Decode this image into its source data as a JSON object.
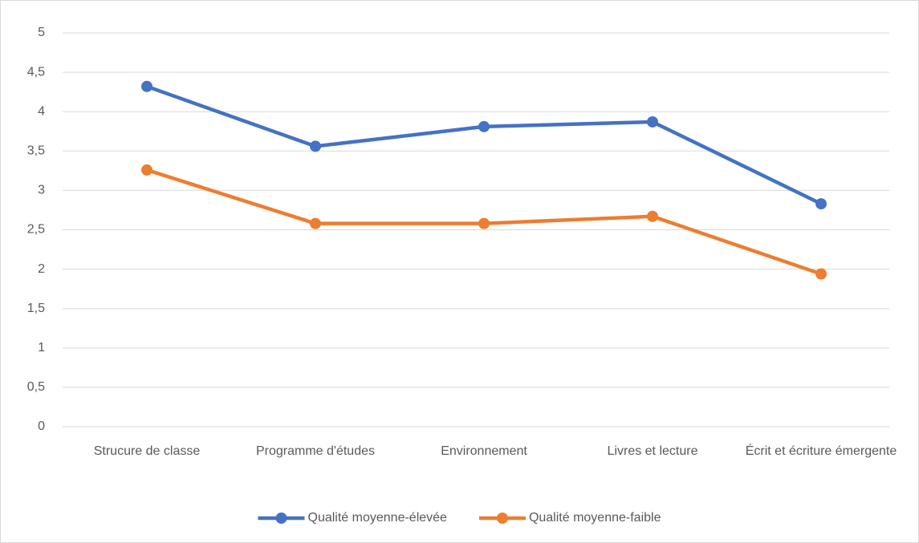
{
  "chart_data": {
    "type": "line",
    "categories": [
      "Strucure de classe",
      "Programme d'études",
      "Environnement",
      "Livres et lecture",
      "Écrit et écriture émergente"
    ],
    "series": [
      {
        "name": "Qualité moyenne-élevée",
        "color": "#4472c4",
        "values": [
          4.32,
          3.56,
          3.81,
          3.87,
          2.83
        ]
      },
      {
        "name": "Qualité moyenne-faible",
        "color": "#ed7d31",
        "values": [
          3.26,
          2.58,
          2.58,
          2.67,
          1.94
        ]
      }
    ],
    "ylim": [
      0,
      5
    ],
    "yticks": [
      0,
      {
        "value": 0.5,
        "label": "0,5"
      },
      1,
      {
        "value": 1.5,
        "label": "1,5"
      },
      2,
      {
        "value": 2.5,
        "label": "2,5"
      },
      3,
      {
        "value": 3.5,
        "label": "3,5"
      },
      4,
      {
        "value": 4.5,
        "label": "4,5"
      },
      5
    ],
    "grid": true,
    "legend": "bottom"
  }
}
